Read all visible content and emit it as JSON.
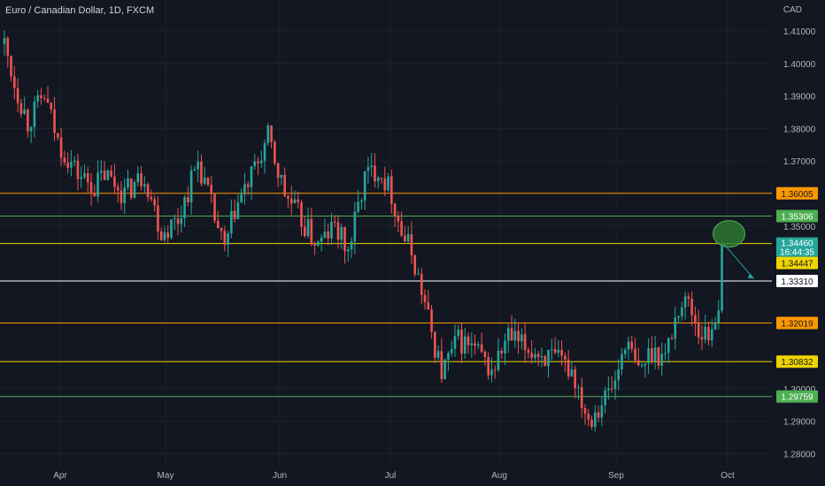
{
  "header": {
    "symbol_title": "Euro / Canadian Dollar, 1D, FXCM",
    "currency": "CAD"
  },
  "colors": {
    "background": "#131722",
    "grid": "#1e222d",
    "axis_text": "#b2b5be",
    "bull": "#26a69a",
    "bear": "#ef5350",
    "orange_line": "#ff9800",
    "green_line": "#4caf50",
    "yellow_line": "#f0d400",
    "white_line": "#ffffff",
    "price_tag": "#26a69a",
    "highlight_circle": "#2e7d32"
  },
  "chart_data": {
    "type": "candlestick",
    "y_ticks": [
      "1.41000",
      "1.40000",
      "1.39000",
      "1.38000",
      "1.37000",
      "1.35000",
      "1.30000",
      "1.29000",
      "1.28000"
    ],
    "y_tick_values": [
      1.41,
      1.4,
      1.39,
      1.38,
      1.37,
      1.35,
      1.3,
      1.29,
      1.28
    ],
    "x_ticks": [
      "Apr",
      "May",
      "Jun",
      "Jul",
      "Aug",
      "Sep",
      "Oct"
    ],
    "ylim": [
      1.2755,
      1.4195
    ],
    "grid": true,
    "horizontal_levels": [
      {
        "price": 1.36005,
        "label": "1.36005",
        "color": "orange"
      },
      {
        "price": 1.35306,
        "label": "1.35306",
        "color": "green"
      },
      {
        "price": 1.3446,
        "label": "1.34460",
        "color": "yellow"
      },
      {
        "price": 1.3331,
        "label": "1.33310",
        "color": "white"
      },
      {
        "price": 1.32019,
        "label": "1.32019",
        "color": "orange"
      },
      {
        "price": 1.30832,
        "label": "1.30832",
        "color": "yellow"
      },
      {
        "price": 1.29759,
        "label": "1.29759",
        "color": "green"
      }
    ],
    "current_price": {
      "label": "1.34460",
      "countdown": "16:44:35"
    },
    "secondary_price": {
      "label": "1.34447"
    },
    "anchors": [
      [
        0,
        1.406
      ],
      [
        3,
        1.394
      ],
      [
        7,
        1.382
      ],
      [
        12,
        1.39
      ],
      [
        16,
        1.376
      ],
      [
        22,
        1.366
      ],
      [
        27,
        1.362
      ],
      [
        30,
        1.366
      ],
      [
        36,
        1.36
      ],
      [
        42,
        1.366
      ],
      [
        47,
        1.348
      ],
      [
        52,
        1.352
      ],
      [
        58,
        1.37
      ],
      [
        62,
        1.356
      ],
      [
        66,
        1.342
      ],
      [
        69,
        1.355
      ],
      [
        74,
        1.365
      ],
      [
        79,
        1.377
      ],
      [
        84,
        1.36
      ],
      [
        90,
        1.35
      ],
      [
        94,
        1.344
      ],
      [
        99,
        1.35
      ],
      [
        103,
        1.342
      ],
      [
        108,
        1.365
      ],
      [
        112,
        1.368
      ],
      [
        116,
        1.36
      ],
      [
        119,
        1.348
      ],
      [
        122,
        1.342
      ],
      [
        125,
        1.33
      ],
      [
        128,
        1.317
      ],
      [
        131,
        1.305
      ],
      [
        136,
        1.315
      ],
      [
        141,
        1.312
      ],
      [
        146,
        1.305
      ],
      [
        151,
        1.316
      ],
      [
        155,
        1.313
      ],
      [
        160,
        1.311
      ],
      [
        164,
        1.309
      ],
      [
        170,
        1.306
      ],
      [
        175,
        1.291
      ],
      [
        179,
        1.296
      ],
      [
        183,
        1.302
      ],
      [
        186,
        1.315
      ],
      [
        190,
        1.305
      ],
      [
        194,
        1.312
      ],
      [
        198,
        1.31
      ],
      [
        202,
        1.325
      ],
      [
        205,
        1.327
      ],
      [
        208,
        1.318
      ],
      [
        211,
        1.316
      ],
      [
        213,
        1.323
      ],
      [
        215,
        1.3446
      ]
    ]
  }
}
